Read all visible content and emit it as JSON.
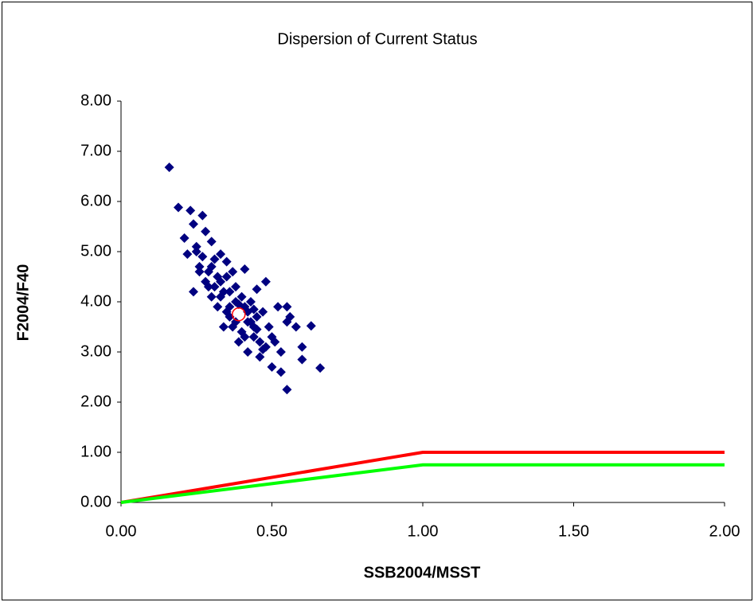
{
  "chart_data": {
    "type": "scatter",
    "title": "Dispersion of Current Status",
    "x_label": "SSB2004/MSST",
    "y_label": "F2004/F40",
    "xlim": [
      0,
      2
    ],
    "ylim": [
      0,
      8
    ],
    "xticks": [
      {
        "value": 0,
        "label": "0.00"
      },
      {
        "value": 0.5,
        "label": "0.50"
      },
      {
        "value": 1,
        "label": "1.00"
      },
      {
        "value": 1.5,
        "label": "1.50"
      },
      {
        "value": 2,
        "label": "2.00"
      }
    ],
    "yticks": [
      {
        "value": 0,
        "label": "0.00"
      },
      {
        "value": 1,
        "label": "1.00"
      },
      {
        "value": 2,
        "label": "2.00"
      },
      {
        "value": 3,
        "label": "3.00"
      },
      {
        "value": 4,
        "label": "4.00"
      },
      {
        "value": 5,
        "label": "5.00"
      },
      {
        "value": 6,
        "label": "6.00"
      },
      {
        "value": 7,
        "label": "7.00"
      },
      {
        "value": 8,
        "label": "8.00"
      }
    ],
    "series": [
      {
        "kind": "diamond",
        "color": "#000080",
        "x": [
          0.16,
          0.19,
          0.21,
          0.23,
          0.27,
          0.22,
          0.24,
          0.25,
          0.26,
          0.28,
          0.29,
          0.3,
          0.31,
          0.32,
          0.33,
          0.34,
          0.35,
          0.36,
          0.37,
          0.38,
          0.4,
          0.41,
          0.42,
          0.43,
          0.44,
          0.45,
          0.46,
          0.47,
          0.48,
          0.5,
          0.52,
          0.53,
          0.55,
          0.55,
          0.58,
          0.6,
          0.6,
          0.63,
          0.66,
          0.55,
          0.5,
          0.48,
          0.46,
          0.44,
          0.42,
          0.4,
          0.38,
          0.36,
          0.34,
          0.32,
          0.3,
          0.28,
          0.26,
          0.24,
          0.25,
          0.27,
          0.29,
          0.31,
          0.33,
          0.35,
          0.37,
          0.39,
          0.41,
          0.43,
          0.45,
          0.47,
          0.49,
          0.51,
          0.53,
          0.56,
          0.3,
          0.33,
          0.36,
          0.39,
          0.42,
          0.45,
          0.35,
          0.38,
          0.41,
          0.44
        ],
        "values": [
          6.68,
          5.88,
          5.27,
          5.82,
          5.72,
          4.95,
          5.55,
          5.1,
          4.6,
          5.4,
          4.3,
          5.2,
          4.85,
          4.5,
          4.95,
          4.2,
          4.8,
          3.9,
          4.6,
          4.3,
          4.1,
          4.65,
          3.6,
          4.0,
          3.5,
          4.25,
          3.2,
          3.8,
          4.4,
          3.3,
          3.9,
          3.0,
          3.9,
          2.25,
          3.5,
          3.1,
          2.85,
          3.52,
          2.68,
          3.6,
          2.7,
          3.1,
          2.9,
          3.3,
          3.0,
          3.4,
          3.6,
          3.7,
          3.5,
          3.9,
          4.1,
          4.4,
          4.7,
          4.2,
          5.0,
          4.9,
          4.6,
          4.3,
          4.1,
          3.8,
          3.5,
          3.2,
          3.3,
          3.6,
          3.45,
          3.05,
          3.5,
          3.2,
          2.6,
          3.7,
          4.7,
          4.4,
          4.2,
          3.95,
          3.8,
          3.7,
          4.5,
          4.0,
          3.9,
          3.85
        ]
      },
      {
        "kind": "circle",
        "color": "#ff0000",
        "x": [
          0.39
        ],
        "values": [
          3.75
        ]
      },
      {
        "kind": "line",
        "color": "#ff0000",
        "x": [
          0,
          1,
          2
        ],
        "values": [
          0,
          1,
          1
        ]
      },
      {
        "kind": "line",
        "color": "#00ff00",
        "x": [
          0,
          1,
          2
        ],
        "values": [
          0,
          0.75,
          0.75
        ]
      }
    ]
  }
}
